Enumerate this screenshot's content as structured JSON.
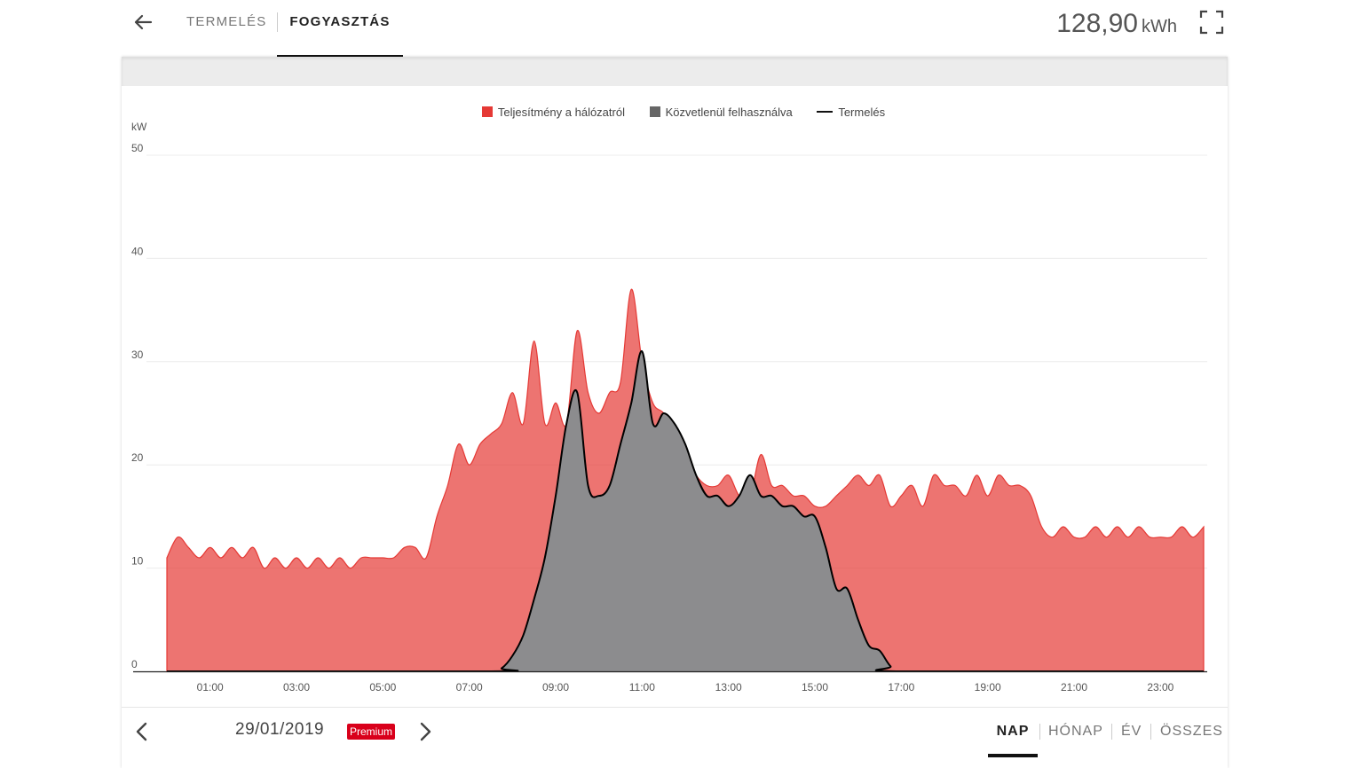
{
  "header": {
    "tabs": [
      {
        "label": "TERMELÉS",
        "active": false
      },
      {
        "label": "FOGYASZTÁS",
        "active": true
      }
    ],
    "total_value": "128,90",
    "total_unit": "kWh"
  },
  "footer": {
    "date": "29/01/2019",
    "badge": "Premium",
    "periods": [
      {
        "label": "NAP",
        "active": true
      },
      {
        "label": "HÓNAP",
        "active": false
      },
      {
        "label": "ÉV",
        "active": false
      },
      {
        "label": "ÖSSZES",
        "active": false
      }
    ]
  },
  "colors": {
    "grid": "#e53935",
    "direct": "#8c8c8e",
    "production": "#000000"
  },
  "chart_data": {
    "type": "area",
    "title": "",
    "xlabel": "",
    "ylabel": "kW",
    "xlim": [
      0,
      24
    ],
    "ylim": [
      0,
      50
    ],
    "yticks": [
      0,
      10,
      20,
      30,
      40,
      50
    ],
    "xtick_labels": [
      "01:00",
      "03:00",
      "05:00",
      "07:00",
      "09:00",
      "11:00",
      "13:00",
      "15:00",
      "17:00",
      "19:00",
      "21:00",
      "23:00"
    ],
    "xtick_hours": [
      1,
      3,
      5,
      7,
      9,
      11,
      13,
      15,
      17,
      19,
      21,
      23
    ],
    "legend_position": "top-center",
    "series": [
      {
        "name": "Teljesítmény a hálózatról",
        "style": "area",
        "x": [
          0.0,
          0.25,
          0.5,
          0.75,
          1.0,
          1.25,
          1.5,
          1.75,
          2.0,
          2.25,
          2.5,
          2.75,
          3.0,
          3.25,
          3.5,
          3.75,
          4.0,
          4.25,
          4.5,
          4.75,
          5.0,
          5.25,
          5.5,
          5.75,
          6.0,
          6.25,
          6.5,
          6.75,
          7.0,
          7.25,
          7.5,
          7.75,
          8.0,
          8.25,
          8.5,
          8.75,
          9.0,
          9.25,
          9.5,
          9.75,
          10.0,
          10.25,
          10.5,
          10.75,
          11.0,
          11.25,
          11.5,
          11.75,
          12.0,
          12.25,
          12.5,
          12.75,
          13.0,
          13.25,
          13.5,
          13.75,
          14.0,
          14.25,
          14.5,
          14.75,
          15.0,
          15.25,
          15.5,
          15.75,
          16.0,
          16.25,
          16.5,
          16.75,
          17.0,
          17.25,
          17.5,
          17.75,
          18.0,
          18.25,
          18.5,
          18.75,
          19.0,
          19.25,
          19.5,
          19.75,
          20.0,
          20.25,
          20.5,
          20.75,
          21.0,
          21.25,
          21.5,
          21.75,
          22.0,
          22.25,
          22.5,
          22.75,
          23.0,
          23.25,
          23.5,
          23.75,
          24.0
        ],
        "values": [
          11,
          13,
          12,
          11,
          12,
          11,
          12,
          11,
          12,
          10,
          11,
          10,
          11,
          10,
          11,
          10,
          11,
          10,
          11,
          11,
          11,
          11,
          12,
          12,
          11,
          15,
          18,
          22,
          20,
          22,
          23,
          24,
          27,
          24,
          32,
          24,
          26,
          24,
          33,
          27,
          25,
          27,
          28,
          37,
          30,
          26,
          25,
          23,
          21,
          19,
          18,
          18,
          19,
          17,
          17,
          21,
          18,
          18,
          17,
          17,
          16,
          16,
          17,
          18,
          19,
          18,
          19,
          16,
          17,
          18,
          16,
          19,
          18,
          18,
          17,
          19,
          17,
          19,
          18,
          18,
          17,
          14,
          13,
          14,
          13,
          13,
          14,
          13,
          14,
          13,
          14,
          13,
          13,
          13,
          14,
          13,
          14
        ]
      },
      {
        "name": "Közvetlenül felhasználva",
        "style": "area",
        "x": [
          0.0,
          7.5,
          7.75,
          8.0,
          8.25,
          8.5,
          8.75,
          9.0,
          9.25,
          9.5,
          9.75,
          10.0,
          10.25,
          10.5,
          10.75,
          11.0,
          11.25,
          11.5,
          11.75,
          12.0,
          12.25,
          12.5,
          12.75,
          13.0,
          13.25,
          13.5,
          13.75,
          14.0,
          14.25,
          14.5,
          14.75,
          15.0,
          15.25,
          15.5,
          15.75,
          16.0,
          16.25,
          16.5,
          16.75,
          17.0,
          24.0
        ],
        "values": [
          0,
          0,
          0.3,
          1.5,
          3.5,
          7,
          11,
          17,
          24,
          27,
          18,
          17,
          18,
          22,
          26,
          31,
          24,
          25,
          24,
          22,
          19,
          17,
          17,
          16,
          17,
          19,
          17,
          17,
          16,
          16,
          15,
          15,
          12,
          8,
          8,
          5,
          2.5,
          2,
          0.5,
          0,
          0
        ]
      },
      {
        "name": "Termelés",
        "style": "line",
        "follows": "Közvetlenül felhasználva"
      }
    ]
  }
}
